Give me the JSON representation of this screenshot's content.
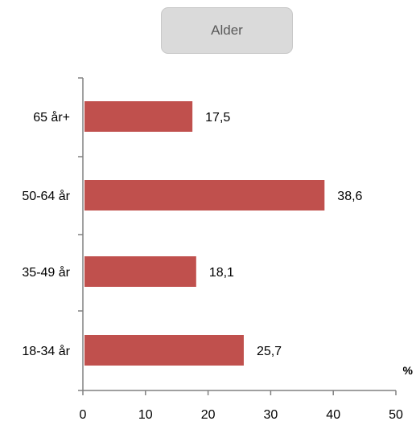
{
  "chart_data": {
    "type": "bar",
    "orientation": "horizontal",
    "title": "Alder",
    "categories": [
      "65 år+",
      "50-64 år",
      "35-49 år",
      "18-34 år"
    ],
    "values": [
      17.5,
      38.6,
      18.1,
      25.7
    ],
    "value_labels": [
      "17,5",
      "38,6",
      "18,1",
      "25,7"
    ],
    "x_ticks": [
      "0",
      "10",
      "20",
      "30",
      "40",
      "50"
    ],
    "xlim": [
      0,
      50
    ],
    "unit_label": "%",
    "bar_color": "#c0504d",
    "grid": false,
    "legend": "none"
  }
}
